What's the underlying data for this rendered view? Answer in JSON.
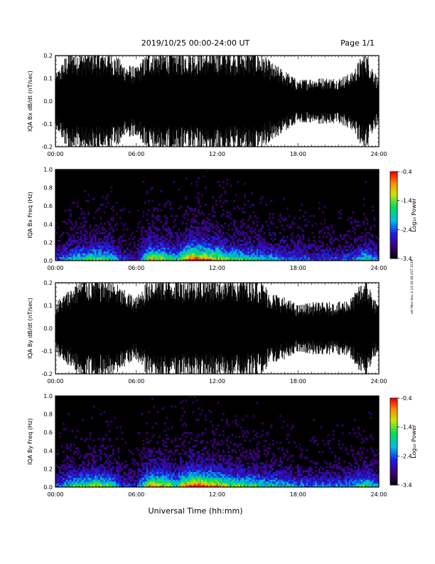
{
  "header": {
    "title": "2019/10/25  00:00-24:00 UT",
    "page": "Page 1/1"
  },
  "side_note": "rell Mon Nov 4 13:19:48 EST 2019",
  "x_axis": {
    "xlabel": "Universal Time (hh:mm)",
    "tick_labels": [
      "00:00",
      "06:00",
      "12:00",
      "18:00",
      "24:00"
    ]
  },
  "chart_data": [
    {
      "type": "line",
      "panel": "Bx waveform",
      "ylabel": "IQA Bx dB/dt (nT/sec)",
      "x_range_hours": [
        0,
        24
      ],
      "ylim": [
        -0.2,
        0.2
      ],
      "y_tick_labels": [
        "-0.2",
        "-0.1",
        "0.0",
        "0.1",
        "0.2"
      ],
      "series": [
        {
          "x_hours": [
            0,
            1,
            2,
            3,
            4,
            5,
            6,
            7,
            8,
            9,
            10,
            11,
            12,
            13,
            14,
            15,
            16,
            17,
            18,
            19,
            20,
            21,
            22,
            23,
            24
          ],
          "amplitude": [
            0.1,
            0.2,
            0.2,
            0.2,
            0.2,
            0.15,
            0.13,
            0.2,
            0.2,
            0.2,
            0.2,
            0.2,
            0.2,
            0.2,
            0.2,
            0.2,
            0.15,
            0.12,
            0.08,
            0.09,
            0.09,
            0.09,
            0.11,
            0.2,
            0.08
          ]
        }
      ]
    },
    {
      "type": "heatmap",
      "panel": "Bx spectrogram",
      "ylabel": "IQA Bx Freq (Hz)",
      "x_range_hours": [
        0,
        24
      ],
      "ylim": [
        0.0,
        1.0
      ],
      "y_tick_labels": [
        "0.0",
        "0.2",
        "0.4",
        "0.6",
        "0.8",
        "1.0"
      ],
      "colorbar": {
        "label": "Log₁₀ Power",
        "range": [
          -3.4,
          -0.4
        ],
        "tick_labels": [
          "-0.4",
          "-1.4",
          "-2.4",
          "-3.4"
        ]
      },
      "activity_x_hours": [
        0,
        1,
        2,
        3,
        4,
        5,
        6,
        7,
        8,
        9,
        10,
        11,
        12,
        13,
        14,
        15,
        16,
        17,
        18,
        19,
        20,
        21,
        22,
        23,
        24
      ],
      "activity_level": [
        0.25,
        0.45,
        0.55,
        0.6,
        0.55,
        0.25,
        0.2,
        0.75,
        0.7,
        0.5,
        0.95,
        0.9,
        0.75,
        0.6,
        0.55,
        0.5,
        0.45,
        0.4,
        0.35,
        0.3,
        0.3,
        0.3,
        0.35,
        0.55,
        0.3
      ]
    },
    {
      "type": "line",
      "panel": "By waveform",
      "ylabel": "IQA By dB/dt (nT/sec)",
      "x_range_hours": [
        0,
        24
      ],
      "ylim": [
        -0.2,
        0.2
      ],
      "y_tick_labels": [
        "-0.2",
        "-0.1",
        "0.0",
        "0.1",
        "0.2"
      ],
      "series": [
        {
          "x_hours": [
            0,
            1,
            2,
            3,
            4,
            5,
            6,
            7,
            8,
            9,
            10,
            11,
            12,
            13,
            14,
            15,
            16,
            17,
            18,
            19,
            20,
            21,
            22,
            23,
            24
          ],
          "amplitude": [
            0.1,
            0.15,
            0.2,
            0.2,
            0.2,
            0.15,
            0.12,
            0.2,
            0.2,
            0.2,
            0.2,
            0.2,
            0.2,
            0.2,
            0.2,
            0.2,
            0.14,
            0.12,
            0.09,
            0.1,
            0.1,
            0.1,
            0.12,
            0.2,
            0.08
          ]
        }
      ]
    },
    {
      "type": "heatmap",
      "panel": "By spectrogram",
      "ylabel": "IQA By Freq (Hz)",
      "x_range_hours": [
        0,
        24
      ],
      "ylim": [
        0.0,
        1.0
      ],
      "y_tick_labels": [
        "0.0",
        "0.2",
        "0.4",
        "0.6",
        "0.8",
        "1.0"
      ],
      "colorbar": {
        "label": "Log₁₀ Power",
        "range": [
          -3.4,
          -0.4
        ],
        "tick_labels": [
          "-0.4",
          "-1.4",
          "-2.4",
          "-3.4"
        ]
      },
      "activity_x_hours": [
        0,
        1,
        2,
        3,
        4,
        5,
        6,
        7,
        8,
        9,
        10,
        11,
        12,
        13,
        14,
        15,
        16,
        17,
        18,
        19,
        20,
        21,
        22,
        23,
        24
      ],
      "activity_level": [
        0.3,
        0.5,
        0.6,
        0.65,
        0.6,
        0.3,
        0.25,
        0.8,
        0.75,
        0.55,
        0.95,
        0.9,
        0.8,
        0.65,
        0.6,
        0.55,
        0.5,
        0.45,
        0.4,
        0.35,
        0.35,
        0.35,
        0.4,
        0.6,
        0.35
      ]
    }
  ]
}
